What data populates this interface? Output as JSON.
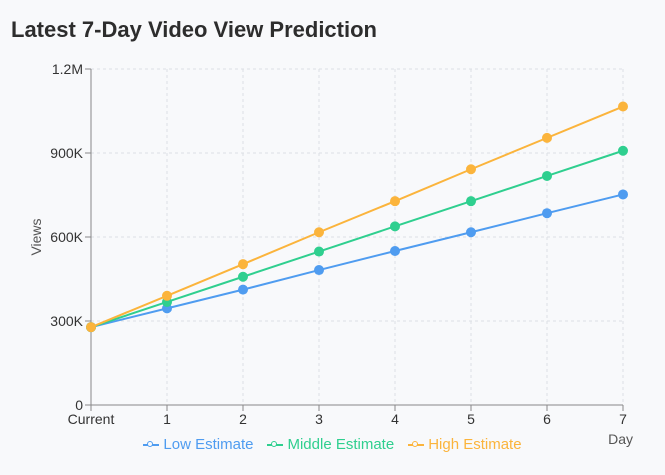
{
  "chart_data": {
    "type": "line",
    "title": "Latest 7-Day Video View Prediction",
    "xlabel": "Day",
    "ylabel": "Views",
    "categories": [
      "Current",
      "1",
      "2",
      "3",
      "4",
      "5",
      "6",
      "7"
    ],
    "ylim": [
      0,
      1200000
    ],
    "yticks": [
      {
        "value": 0,
        "label": "0"
      },
      {
        "value": 300000,
        "label": "300K"
      },
      {
        "value": 600000,
        "label": "600K"
      },
      {
        "value": 900000,
        "label": "900K"
      },
      {
        "value": 1200000,
        "label": "1.2M"
      }
    ],
    "grid": true,
    "legend_position": "bottom",
    "series": [
      {
        "name": "Low Estimate",
        "color": "#4f9cf0",
        "values": [
          278000,
          345000,
          412000,
          482000,
          550000,
          617000,
          685000,
          752000
        ]
      },
      {
        "name": "Middle Estimate",
        "color": "#2fcf8f",
        "values": [
          278000,
          368000,
          458000,
          548000,
          638000,
          728000,
          818000,
          908000
        ]
      },
      {
        "name": "High Estimate",
        "color": "#fbb43c",
        "values": [
          278000,
          390000,
          503000,
          617000,
          728000,
          842000,
          954000,
          1066000
        ]
      }
    ]
  }
}
